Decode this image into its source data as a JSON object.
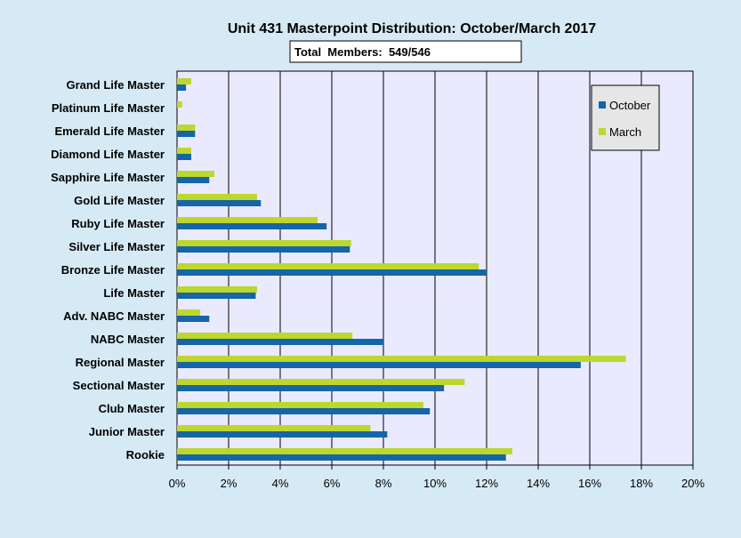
{
  "chart_data": {
    "type": "bar",
    "orientation": "horizontal",
    "title": "Unit 431 Masterpoint Distribution: October/March 2017",
    "subtitle": "Total  Members:  549/546",
    "xlabel": "",
    "ylabel": "",
    "xlim": [
      0,
      20
    ],
    "x_ticks": [
      "0%",
      "2%",
      "4%",
      "6%",
      "8%",
      "10%",
      "12%",
      "14%",
      "16%",
      "18%",
      "20%"
    ],
    "grid": "vertical",
    "legend_position": "top-right",
    "categories": [
      "Grand Life Master",
      "Platinum Life Master",
      "Emerald Life Master",
      "Diamond Life Master",
      "Sapphire Life Master",
      "Gold Life Master",
      "Ruby Life Master",
      "Silver Life Master",
      "Bronze Life Master",
      "Life Master",
      "Adv. NABC Master",
      "NABC Master",
      "Regional Master",
      "Sectional Master",
      "Club Master",
      "Junior Master",
      "Rookie"
    ],
    "series": [
      {
        "name": "October",
        "color": "#1565a8",
        "values": [
          0.35,
          0.0,
          0.7,
          0.55,
          1.25,
          3.25,
          5.8,
          6.7,
          12.0,
          3.05,
          1.25,
          8.0,
          15.65,
          10.35,
          9.8,
          8.15,
          12.75
        ]
      },
      {
        "name": "March",
        "color": "#bcd72e",
        "values": [
          0.55,
          0.2,
          0.7,
          0.55,
          1.45,
          3.1,
          5.45,
          6.75,
          11.7,
          3.1,
          0.9,
          6.8,
          17.4,
          11.15,
          9.55,
          7.5,
          13.0
        ]
      }
    ]
  }
}
